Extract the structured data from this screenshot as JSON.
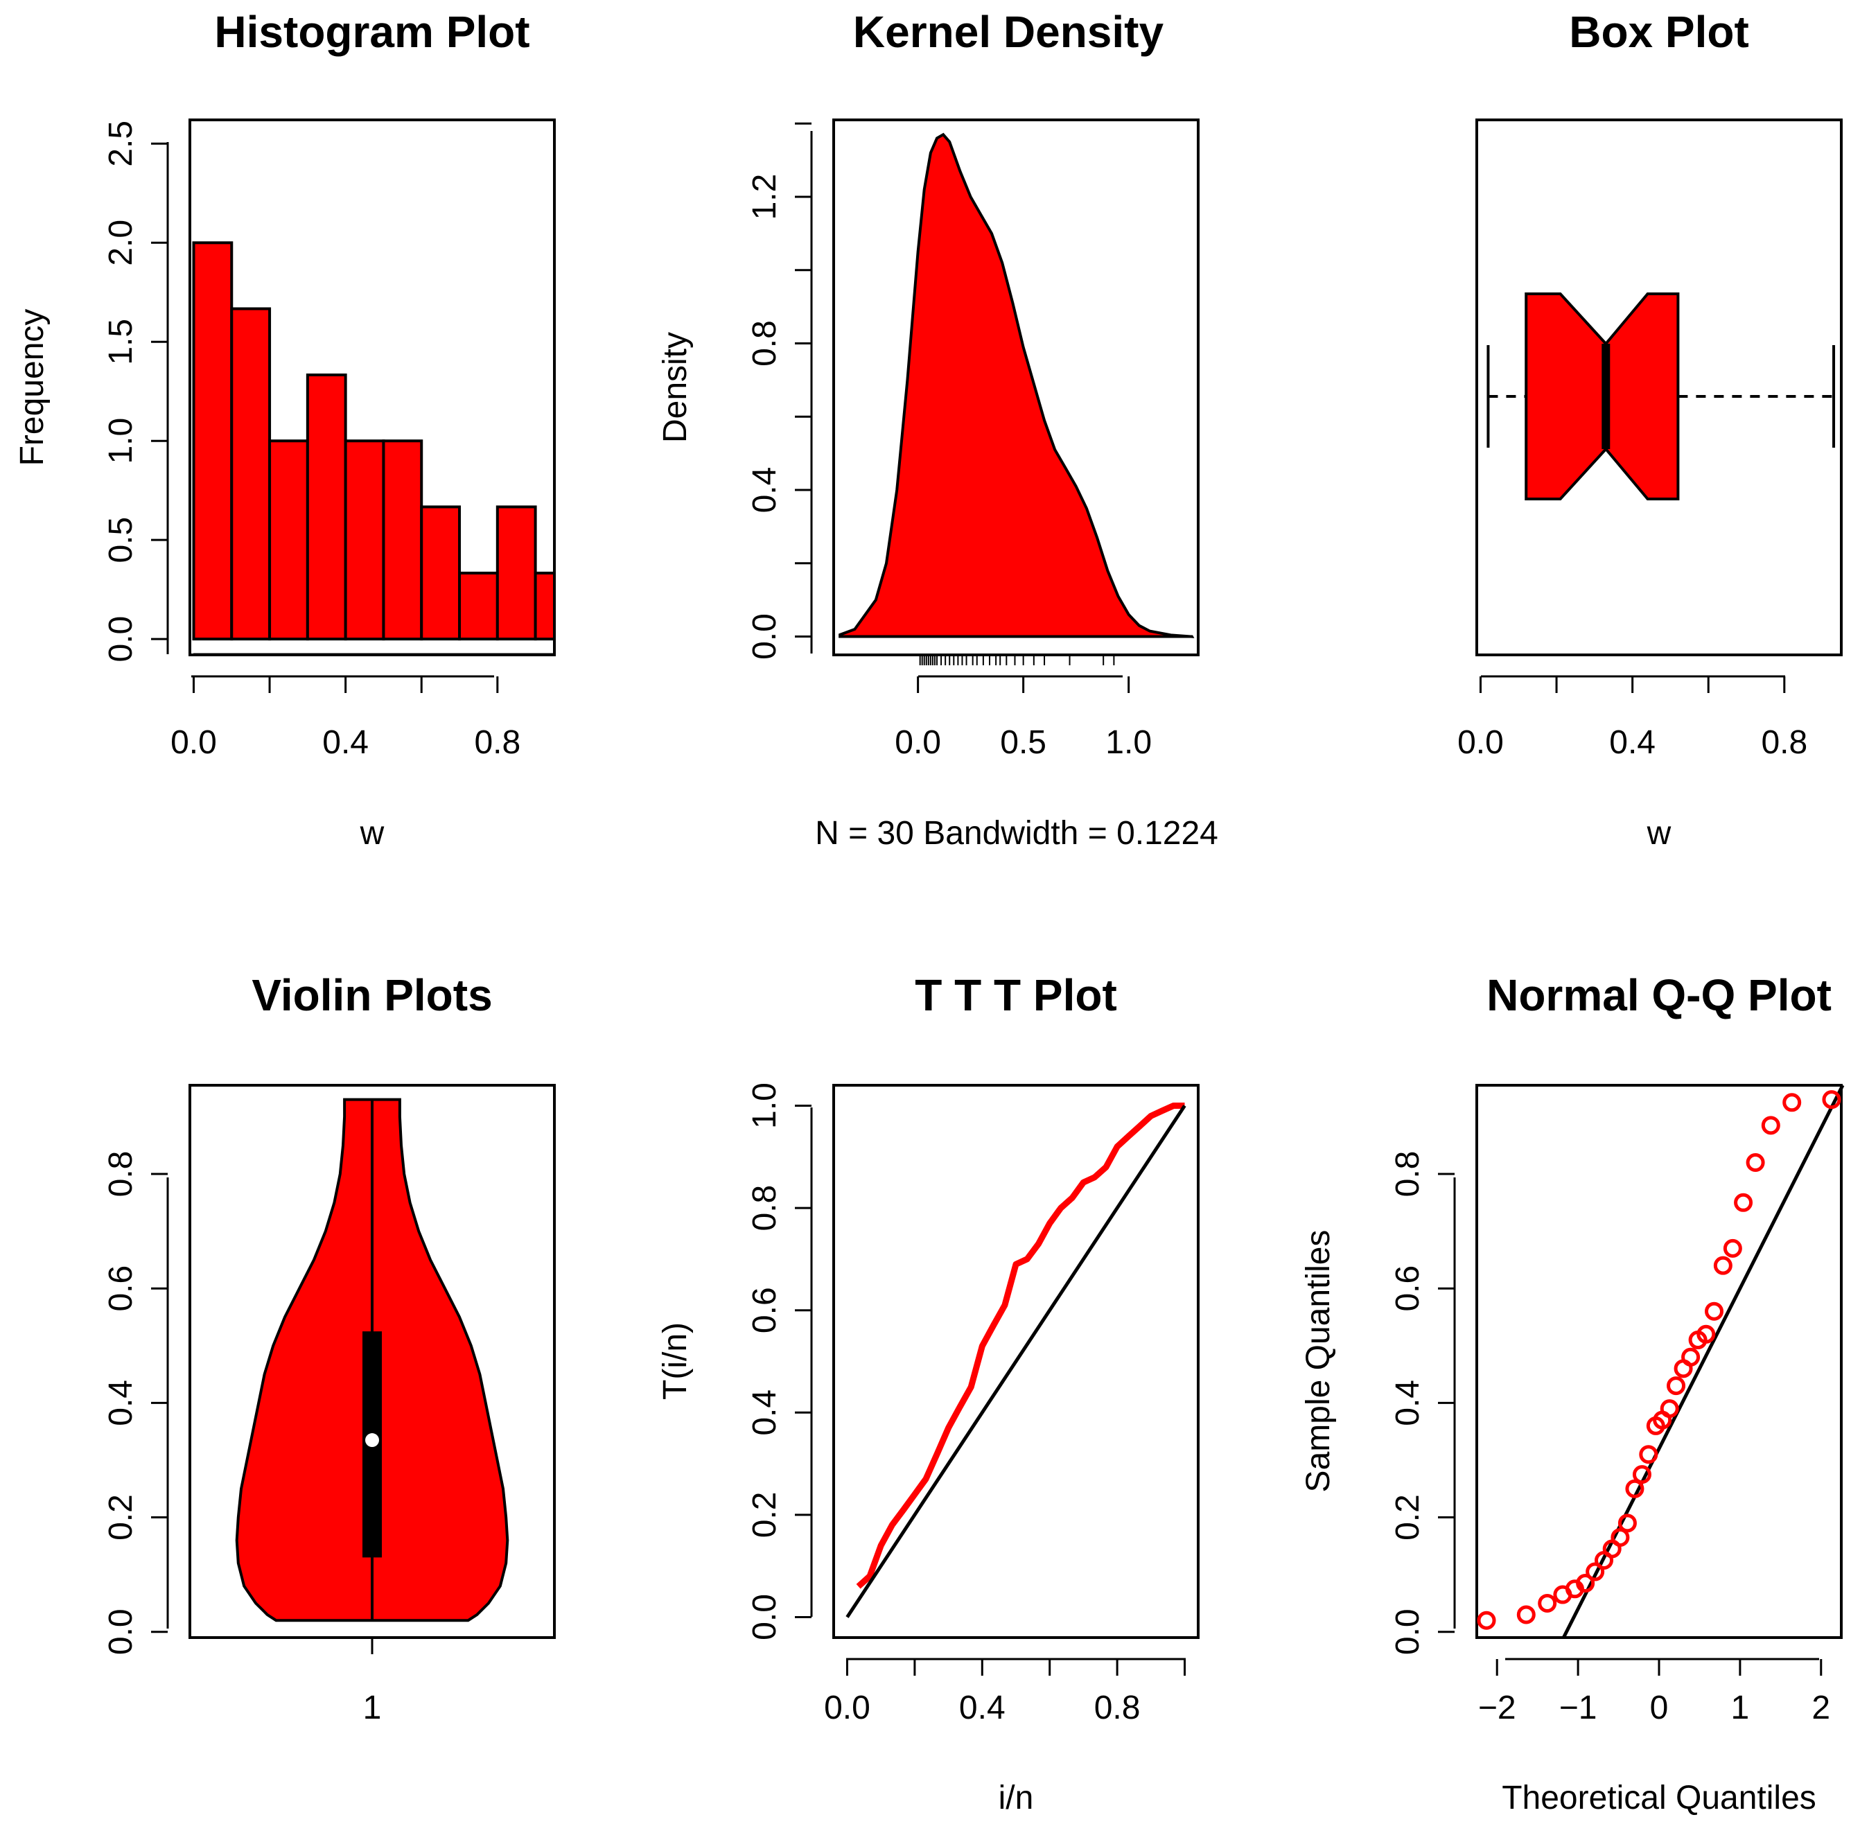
{
  "chart_data": [
    {
      "type": "bar",
      "title": "Histogram Plot",
      "xlabel": "w",
      "ylabel": "Frequency",
      "bin_edges": [
        0.0,
        0.1,
        0.2,
        0.3,
        0.4,
        0.5,
        0.6,
        0.7,
        0.8,
        0.9,
        1.0
      ],
      "values": [
        2.0,
        1.667,
        1.0,
        1.333,
        1.0,
        1.0,
        0.667,
        0.333,
        0.667,
        0.333
      ],
      "xticks": [
        "0.0",
        "0.4",
        "0.8"
      ],
      "yticks": [
        "0.0",
        "0.5",
        "1.0",
        "1.5",
        "2.0",
        "2.5"
      ],
      "xlim": [
        -0.01,
        0.95
      ],
      "ylim": [
        -0.08,
        2.62
      ],
      "fill": "#ff0000",
      "grid": false
    },
    {
      "type": "area",
      "title": "Kernel Density",
      "xlabel": "N = 30   Bandwidth = 0.1224",
      "ylabel": "Density",
      "x": [
        -0.37,
        -0.3,
        -0.2,
        -0.15,
        -0.1,
        -0.05,
        0.0,
        0.03,
        0.06,
        0.09,
        0.12,
        0.15,
        0.2,
        0.25,
        0.3,
        0.35,
        0.4,
        0.45,
        0.5,
        0.55,
        0.6,
        0.65,
        0.7,
        0.75,
        0.8,
        0.85,
        0.9,
        0.95,
        1.0,
        1.05,
        1.1,
        1.2,
        1.3
      ],
      "y": [
        0.005,
        0.02,
        0.1,
        0.2,
        0.4,
        0.7,
        1.05,
        1.22,
        1.32,
        1.36,
        1.37,
        1.35,
        1.27,
        1.2,
        1.15,
        1.1,
        1.02,
        0.91,
        0.79,
        0.69,
        0.59,
        0.51,
        0.46,
        0.41,
        0.35,
        0.27,
        0.18,
        0.11,
        0.06,
        0.03,
        0.015,
        0.004,
        0.0
      ],
      "rug": [
        0.01,
        0.02,
        0.03,
        0.04,
        0.05,
        0.06,
        0.07,
        0.08,
        0.09,
        0.11,
        0.13,
        0.15,
        0.17,
        0.19,
        0.21,
        0.23,
        0.26,
        0.28,
        0.31,
        0.34,
        0.37,
        0.39,
        0.42,
        0.46,
        0.5,
        0.55,
        0.6,
        0.72,
        0.88,
        0.93
      ],
      "xticks": [
        "0.0",
        "0.5",
        "1.0"
      ],
      "yticks": [
        "0.0",
        "0.4",
        "0.8",
        "1.2"
      ],
      "xlim": [
        -0.4,
        1.33
      ],
      "ylim": [
        -0.05,
        1.41
      ],
      "fill": "#ff0000",
      "grid": false
    },
    {
      "type": "box",
      "title": "Box Plot",
      "xlabel": "w",
      "orientation": "horizontal",
      "notch": true,
      "whisker_low": 0.02,
      "q1": 0.12,
      "median": 0.33,
      "q3": 0.52,
      "whisker_high": 0.93,
      "notch_low": 0.21,
      "notch_high": 0.44,
      "xticks": [
        "0.0",
        "0.4",
        "0.8"
      ],
      "xlim": [
        -0.01,
        0.95
      ],
      "fill": "#ff0000",
      "grid": false
    },
    {
      "type": "violin",
      "title": "Violin Plots",
      "xticks": [
        "1"
      ],
      "yticks": [
        "0.0",
        "0.2",
        "0.4",
        "0.6",
        "0.8"
      ],
      "ylim": [
        -0.01,
        0.955
      ],
      "y_min": 0.02,
      "y_max": 0.93,
      "profile_y": [
        0.02,
        0.03,
        0.05,
        0.08,
        0.12,
        0.16,
        0.2,
        0.25,
        0.3,
        0.35,
        0.4,
        0.45,
        0.5,
        0.55,
        0.6,
        0.65,
        0.7,
        0.75,
        0.8,
        0.85,
        0.9,
        0.93
      ],
      "profile_half_width": [
        0.33,
        0.36,
        0.4,
        0.44,
        0.46,
        0.465,
        0.46,
        0.45,
        0.43,
        0.41,
        0.39,
        0.37,
        0.34,
        0.3,
        0.25,
        0.2,
        0.16,
        0.13,
        0.11,
        0.1,
        0.095,
        0.095
      ],
      "q1": 0.13,
      "median": 0.335,
      "q3": 0.525,
      "fill": "#ff0000",
      "grid": false
    },
    {
      "type": "line",
      "title": "T T T Plot",
      "xlabel": "i/n",
      "ylabel": "T(i/n)",
      "series": [
        {
          "color": "#ff0000",
          "x": [
            0.033,
            0.067,
            0.1,
            0.133,
            0.167,
            0.2,
            0.233,
            0.267,
            0.3,
            0.333,
            0.367,
            0.4,
            0.433,
            0.467,
            0.5,
            0.533,
            0.567,
            0.6,
            0.633,
            0.667,
            0.7,
            0.733,
            0.767,
            0.8,
            0.833,
            0.867,
            0.9,
            0.933,
            0.967,
            1.0
          ],
          "y": [
            0.06,
            0.08,
            0.14,
            0.18,
            0.21,
            0.24,
            0.27,
            0.32,
            0.37,
            0.41,
            0.45,
            0.53,
            0.57,
            0.61,
            0.69,
            0.7,
            0.73,
            0.77,
            0.8,
            0.82,
            0.85,
            0.86,
            0.88,
            0.92,
            0.94,
            0.96,
            0.98,
            0.99,
            1.0,
            1.0
          ]
        },
        {
          "color": "#000000",
          "x": [
            0,
            1
          ],
          "y": [
            0,
            1
          ]
        }
      ],
      "xticks": [
        "0.0",
        "0.4",
        "0.8"
      ],
      "yticks": [
        "0.0",
        "0.2",
        "0.4",
        "0.6",
        "0.8",
        "1.0"
      ],
      "xlim": [
        -0.04,
        1.04
      ],
      "ylim": [
        -0.04,
        1.04
      ],
      "grid": false
    },
    {
      "type": "scatter",
      "title": "Normal Q-Q Plot",
      "xlabel": "Theoretical Quantiles",
      "ylabel": "Sample Quantiles",
      "x": [
        -2.13,
        -1.64,
        -1.38,
        -1.19,
        -1.04,
        -0.91,
        -0.79,
        -0.68,
        -0.58,
        -0.48,
        -0.39,
        -0.3,
        -0.21,
        -0.13,
        -0.04,
        0.04,
        0.13,
        0.21,
        0.3,
        0.39,
        0.48,
        0.58,
        0.68,
        0.79,
        0.91,
        1.04,
        1.19,
        1.38,
        1.64,
        2.13
      ],
      "y": [
        0.02,
        0.03,
        0.05,
        0.065,
        0.075,
        0.085,
        0.105,
        0.125,
        0.145,
        0.165,
        0.19,
        0.25,
        0.275,
        0.31,
        0.36,
        0.37,
        0.39,
        0.43,
        0.46,
        0.48,
        0.51,
        0.52,
        0.56,
        0.64,
        0.67,
        0.75,
        0.82,
        0.885,
        0.925,
        0.93
      ],
      "reference_line": {
        "intercept": 0.32,
        "slope": 0.28
      },
      "xticks": [
        "−2",
        "−1",
        "0",
        "1",
        "2"
      ],
      "yticks": [
        "0.0",
        "0.2",
        "0.4",
        "0.6",
        "0.8"
      ],
      "xlim": [
        -2.25,
        2.25
      ],
      "ylim": [
        -0.01,
        0.955
      ],
      "marker_color": "#ff0000",
      "grid": false
    }
  ]
}
